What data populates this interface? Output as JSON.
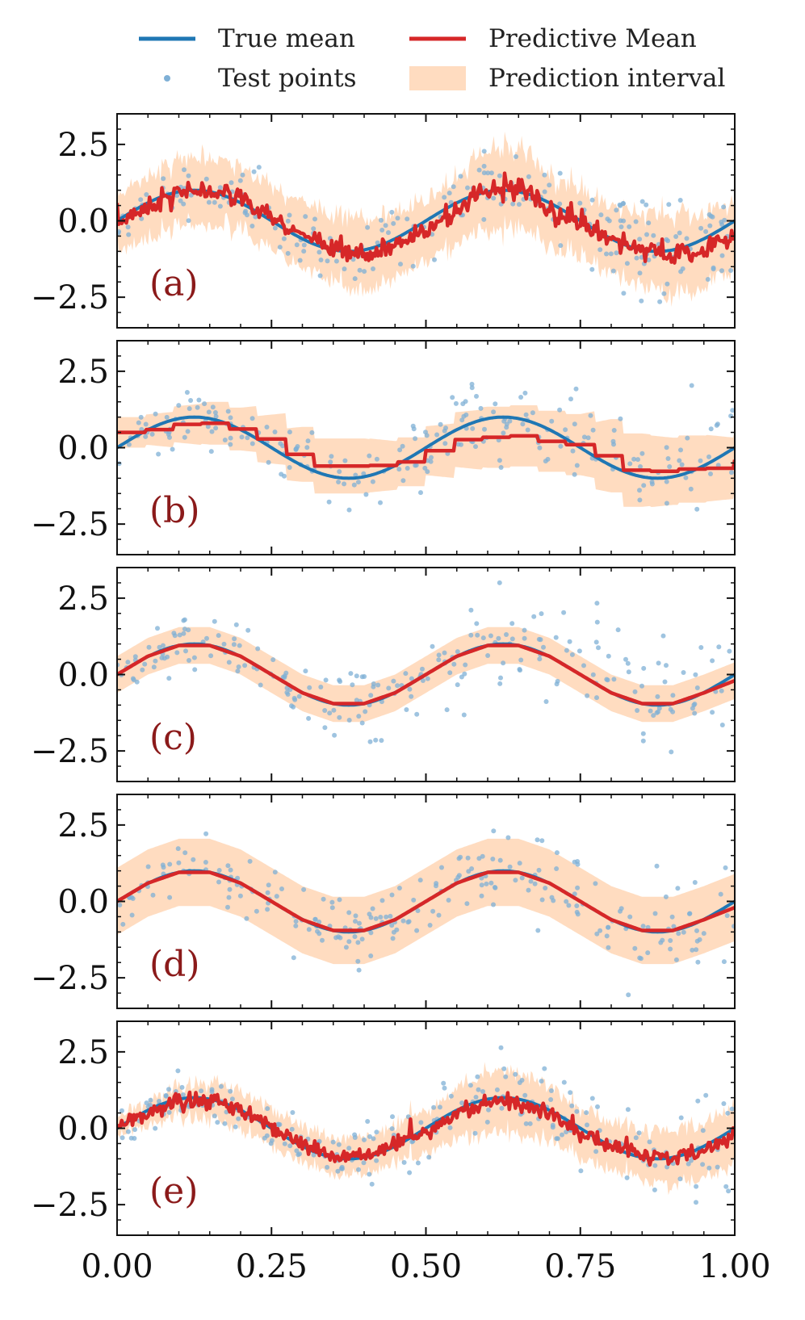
{
  "legend": {
    "true_mean": "True mean",
    "test_points": "Test points",
    "predictive_mean": "Predictive Mean",
    "prediction_interval": "Prediction interval"
  },
  "colors": {
    "true_mean": "#1f77b4",
    "predictive_mean": "#d62728",
    "prediction_interval": "#ffdcc0",
    "test_points": "#7fb0d6"
  },
  "chart_data": {
    "type": "line",
    "xlim": [
      0,
      1
    ],
    "ylim": [
      -3.5,
      3.5
    ],
    "x_ticks": [
      0.0,
      0.25,
      0.5,
      0.75,
      1.0
    ],
    "x_tick_labels": [
      "0.00",
      "0.25",
      "0.50",
      "0.75",
      "1.00"
    ],
    "y_ticks": [
      2.5,
      0.0,
      -2.5
    ],
    "y_tick_labels": [
      "2.5",
      "0.0",
      "−2.5"
    ],
    "true_mean_function": "sin(4*pi*x)",
    "panels": [
      {
        "label": "(a)",
        "x": [
          0,
          0.05,
          0.1,
          0.15,
          0.2,
          0.25,
          0.3,
          0.35,
          0.4,
          0.45,
          0.5,
          0.55,
          0.6,
          0.65,
          0.7,
          0.75,
          0.8,
          0.85,
          0.9,
          0.95,
          1.0
        ],
        "predictive_mean": [
          -0.1,
          0.5,
          0.9,
          1.0,
          0.7,
          0.1,
          -0.5,
          -1.0,
          -1.1,
          -0.8,
          -0.3,
          0.3,
          1.0,
          1.1,
          0.4,
          -0.1,
          -0.6,
          -0.9,
          -1.2,
          -0.9,
          -0.5
        ],
        "interval_halfwidth": [
          0.9,
          1.0,
          1.1,
          1.1,
          1.0,
          1.0,
          1.1,
          1.1,
          1.2,
          1.1,
          1.0,
          1.1,
          1.3,
          1.3,
          1.2,
          1.1,
          1.1,
          1.2,
          1.3,
          1.2,
          1.1
        ],
        "noise": 0.35
      },
      {
        "label": "(b)",
        "x": [
          0,
          0.05,
          0.1,
          0.15,
          0.2,
          0.25,
          0.3,
          0.35,
          0.4,
          0.45,
          0.5,
          0.55,
          0.6,
          0.65,
          0.7,
          0.75,
          0.8,
          0.85,
          0.9,
          0.95,
          1.0
        ],
        "predictive_mean": [
          0.5,
          0.6,
          0.8,
          0.8,
          0.5,
          0.1,
          -0.6,
          -0.6,
          -0.6,
          -0.5,
          -0.1,
          0.3,
          0.35,
          0.4,
          0.1,
          0.1,
          -0.7,
          -0.8,
          -0.7,
          -0.7,
          -0.4
        ],
        "interval_halfwidth": [
          0.5,
          0.5,
          0.6,
          0.7,
          0.7,
          0.8,
          0.9,
          0.9,
          0.9,
          0.8,
          0.8,
          0.9,
          1.0,
          1.0,
          1.0,
          1.0,
          1.2,
          1.2,
          1.1,
          1.1,
          1.0
        ],
        "noise": 0.0
      },
      {
        "label": "(c)",
        "x": [
          0,
          0.05,
          0.1,
          0.15,
          0.2,
          0.25,
          0.3,
          0.35,
          0.4,
          0.45,
          0.5,
          0.55,
          0.6,
          0.65,
          0.7,
          0.75,
          0.8,
          0.85,
          0.9,
          0.95,
          1.0
        ],
        "predictive_mean": [
          0.0,
          0.6,
          0.95,
          0.95,
          0.6,
          0.0,
          -0.6,
          -0.95,
          -0.95,
          -0.6,
          0.0,
          0.6,
          0.95,
          0.95,
          0.6,
          0.0,
          -0.6,
          -0.95,
          -0.95,
          -0.6,
          -0.2
        ],
        "interval_halfwidth": [
          0.6,
          0.6,
          0.6,
          0.6,
          0.6,
          0.6,
          0.6,
          0.6,
          0.6,
          0.6,
          0.6,
          0.6,
          0.6,
          0.6,
          0.6,
          0.6,
          0.6,
          0.6,
          0.6,
          0.6,
          0.6
        ],
        "noise": 0.0
      },
      {
        "label": "(d)",
        "x": [
          0,
          0.05,
          0.1,
          0.15,
          0.2,
          0.25,
          0.3,
          0.35,
          0.4,
          0.45,
          0.5,
          0.55,
          0.6,
          0.65,
          0.7,
          0.75,
          0.8,
          0.85,
          0.9,
          0.95,
          1.0
        ],
        "predictive_mean": [
          0.0,
          0.6,
          0.95,
          0.95,
          0.6,
          0.0,
          -0.6,
          -0.95,
          -0.95,
          -0.6,
          0.0,
          0.6,
          0.95,
          0.95,
          0.6,
          0.0,
          -0.6,
          -0.95,
          -0.95,
          -0.6,
          -0.2
        ],
        "interval_halfwidth": [
          1.1,
          1.1,
          1.1,
          1.1,
          1.1,
          1.1,
          1.1,
          1.1,
          1.1,
          1.1,
          1.1,
          1.1,
          1.1,
          1.1,
          1.1,
          1.1,
          1.1,
          1.1,
          1.1,
          1.1,
          1.1
        ],
        "noise": 0.0
      },
      {
        "label": "(e)",
        "x": [
          0,
          0.05,
          0.1,
          0.15,
          0.2,
          0.25,
          0.3,
          0.35,
          0.4,
          0.45,
          0.5,
          0.55,
          0.6,
          0.65,
          0.7,
          0.75,
          0.8,
          0.85,
          0.9,
          0.95,
          1.0
        ],
        "predictive_mean": [
          0.0,
          0.5,
          0.9,
          0.9,
          0.6,
          0.0,
          -0.5,
          -0.9,
          -0.9,
          -0.6,
          -0.1,
          0.4,
          0.9,
          0.85,
          0.5,
          -0.1,
          -0.6,
          -0.9,
          -1.0,
          -0.7,
          -0.3
        ],
        "interval_halfwidth": [
          0.3,
          0.4,
          0.5,
          0.6,
          0.6,
          0.6,
          0.6,
          0.6,
          0.6,
          0.6,
          0.7,
          0.8,
          1.0,
          1.0,
          0.9,
          0.8,
          0.8,
          0.8,
          0.9,
          0.9,
          0.9
        ],
        "noise": 0.25
      }
    ]
  }
}
